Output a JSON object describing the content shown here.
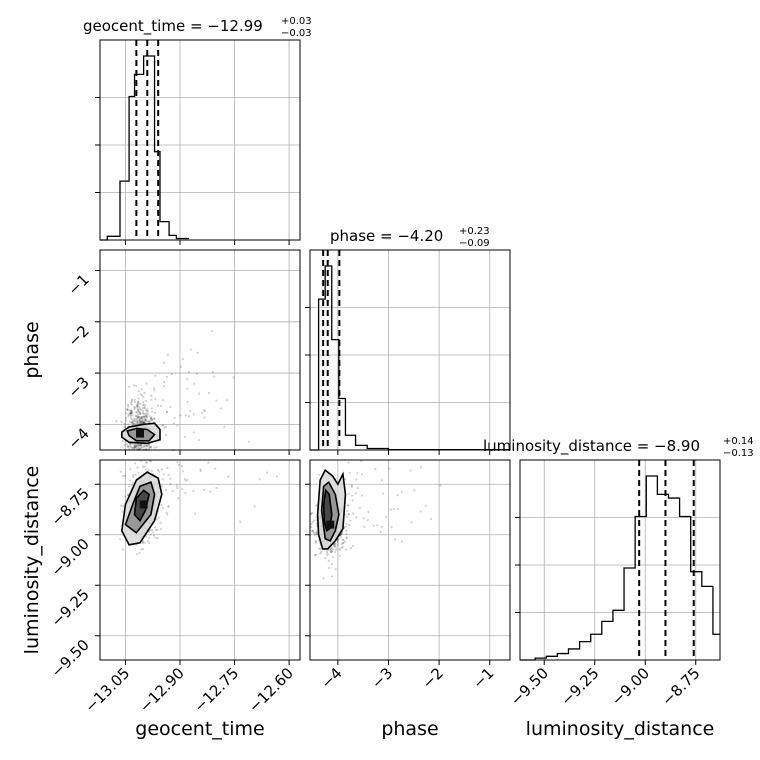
{
  "chart_data": {
    "type": "corner",
    "parameters": [
      "geocent_time",
      "phase",
      "luminosity_distance"
    ],
    "grid": true,
    "diagonal": [
      {
        "parameter": "geocent_time",
        "title": "geocent_time = −12.99",
        "title_plus": "+0.03",
        "title_minus": "−0.03",
        "median": -12.99,
        "quantiles": [
          -13.02,
          -12.99,
          -12.96
        ],
        "xlim": [
          -13.12,
          -12.57
        ],
        "bins": [
          {
            "x0": -13.12,
            "x1": -13.1,
            "h": 0.0
          },
          {
            "x0": -13.1,
            "x1": -13.065,
            "h": 0.02
          },
          {
            "x0": -13.065,
            "x1": -13.04,
            "h": 0.32
          },
          {
            "x0": -13.04,
            "x1": -13.025,
            "h": 0.78
          },
          {
            "x0": -13.025,
            "x1": -13.0,
            "h": 0.9
          },
          {
            "x0": -13.0,
            "x1": -12.97,
            "h": 1.0
          },
          {
            "x0": -12.97,
            "x1": -12.955,
            "h": 0.48
          },
          {
            "x0": -12.955,
            "x1": -12.93,
            "h": 0.1
          },
          {
            "x0": -12.93,
            "x1": -12.91,
            "h": 0.025
          },
          {
            "x0": -12.91,
            "x1": -12.875,
            "h": 0.008
          }
        ]
      },
      {
        "parameter": "phase",
        "title": "phase = −4.20",
        "title_plus": "+0.23",
        "title_minus": "−0.09",
        "median": -4.2,
        "quantiles": [
          -4.29,
          -4.2,
          -3.97
        ],
        "xlim": [
          -4.55,
          -0.6
        ],
        "bins": [
          {
            "x0": -4.55,
            "x1": -4.38,
            "h": 0.0
          },
          {
            "x0": -4.38,
            "x1": -4.25,
            "h": 0.82
          },
          {
            "x0": -4.25,
            "x1": -4.12,
            "h": 1.0
          },
          {
            "x0": -4.12,
            "x1": -3.98,
            "h": 0.6
          },
          {
            "x0": -3.98,
            "x1": -3.85,
            "h": 0.28
          },
          {
            "x0": -3.85,
            "x1": -3.65,
            "h": 0.08
          },
          {
            "x0": -3.65,
            "x1": -3.42,
            "h": 0.025
          },
          {
            "x0": -3.42,
            "x1": -3.0,
            "h": 0.008
          },
          {
            "x0": -3.0,
            "x1": -0.6,
            "h": 0.002
          }
        ]
      },
      {
        "parameter": "luminosity_distance",
        "title": "luminosity_distance = −8.90",
        "title_plus": "+0.14",
        "title_minus": "−0.13",
        "median": -8.9,
        "quantiles": [
          -9.03,
          -8.9,
          -8.76
        ],
        "xlim": [
          -9.62,
          -8.63
        ],
        "bins": [
          {
            "x0": -9.62,
            "x1": -9.545,
            "h": 0.0
          },
          {
            "x0": -9.545,
            "x1": -9.49,
            "h": 0.01
          },
          {
            "x0": -9.49,
            "x1": -9.435,
            "h": 0.02
          },
          {
            "x0": -9.435,
            "x1": -9.38,
            "h": 0.035
          },
          {
            "x0": -9.38,
            "x1": -9.325,
            "h": 0.06
          },
          {
            "x0": -9.325,
            "x1": -9.27,
            "h": 0.1
          },
          {
            "x0": -9.27,
            "x1": -9.215,
            "h": 0.14
          },
          {
            "x0": -9.215,
            "x1": -9.16,
            "h": 0.21
          },
          {
            "x0": -9.16,
            "x1": -9.105,
            "h": 0.27
          },
          {
            "x0": -9.105,
            "x1": -9.05,
            "h": 0.5
          },
          {
            "x0": -9.05,
            "x1": -8.995,
            "h": 0.78
          },
          {
            "x0": -8.995,
            "x1": -8.94,
            "h": 1.0
          },
          {
            "x0": -8.94,
            "x1": -8.885,
            "h": 0.9
          },
          {
            "x0": -8.885,
            "x1": -8.83,
            "h": 0.88
          },
          {
            "x0": -8.83,
            "x1": -8.775,
            "h": 0.78
          },
          {
            "x0": -8.775,
            "x1": -8.72,
            "h": 0.48
          },
          {
            "x0": -8.72,
            "x1": -8.665,
            "h": 0.4
          },
          {
            "x0": -8.665,
            "x1": -8.63,
            "h": 0.14
          }
        ]
      }
    ],
    "scatter_panels": [
      {
        "x_param": "geocent_time",
        "y_param": "phase",
        "xlim": [
          -13.12,
          -12.57
        ],
        "ylim": [
          -4.5,
          -0.6
        ],
        "density_peak": {
          "x": -13.01,
          "y": -4.18
        },
        "contours": [
          [
            [
              -13.06,
              -4.15
            ],
            [
              -13.04,
              -4.05
            ],
            [
              -13.0,
              -4.0
            ],
            [
              -12.97,
              -3.98
            ],
            [
              -12.955,
              -4.1
            ],
            [
              -12.955,
              -4.3
            ],
            [
              -12.99,
              -4.37
            ],
            [
              -13.04,
              -4.35
            ],
            [
              -13.06,
              -4.25
            ]
          ],
          [
            [
              -13.045,
              -4.13
            ],
            [
              -13.02,
              -4.08
            ],
            [
              -12.99,
              -4.1
            ],
            [
              -12.97,
              -4.2
            ],
            [
              -12.985,
              -4.32
            ],
            [
              -13.02,
              -4.32
            ],
            [
              -13.04,
              -4.22
            ]
          ]
        ]
      },
      {
        "x_param": "geocent_time",
        "y_param": "luminosity_distance",
        "xlim": [
          -13.12,
          -12.57
        ],
        "ylim": [
          -9.62,
          -8.63
        ],
        "density_peak": {
          "x": -13.0,
          "y": -8.85
        },
        "contours": [
          [
            [
              -13.06,
              -8.98
            ],
            [
              -13.05,
              -8.85
            ],
            [
              -13.02,
              -8.73
            ],
            [
              -12.99,
              -8.69
            ],
            [
              -12.96,
              -8.72
            ],
            [
              -12.95,
              -8.8
            ],
            [
              -12.97,
              -8.93
            ],
            [
              -13.01,
              -9.04
            ],
            [
              -13.04,
              -9.05
            ]
          ],
          [
            [
              -13.05,
              -8.95
            ],
            [
              -13.03,
              -8.85
            ],
            [
              -13.01,
              -8.76
            ],
            [
              -12.98,
              -8.74
            ],
            [
              -12.97,
              -8.8
            ],
            [
              -12.98,
              -8.9
            ],
            [
              -13.02,
              -8.99
            ]
          ],
          [
            [
              -13.025,
              -8.9
            ],
            [
              -13.02,
              -8.82
            ],
            [
              -13.0,
              -8.78
            ],
            [
              -12.985,
              -8.8
            ],
            [
              -12.995,
              -8.88
            ],
            [
              -13.01,
              -8.93
            ]
          ]
        ]
      },
      {
        "x_param": "phase",
        "y_param": "luminosity_distance",
        "xlim": [
          -4.55,
          -0.6
        ],
        "ylim": [
          -9.62,
          -8.63
        ],
        "density_peak": {
          "x": -4.15,
          "y": -8.95
        },
        "contours": [
          [
            [
              -4.4,
              -8.9
            ],
            [
              -4.35,
              -8.73
            ],
            [
              -4.25,
              -8.68
            ],
            [
              -4.1,
              -8.71
            ],
            [
              -4.0,
              -8.75
            ],
            [
              -3.9,
              -8.7
            ],
            [
              -3.85,
              -8.8
            ],
            [
              -3.9,
              -8.97
            ],
            [
              -4.05,
              -9.03
            ],
            [
              -4.2,
              -9.07
            ],
            [
              -4.3,
              -9.07
            ],
            [
              -4.38,
              -9.0
            ]
          ],
          [
            [
              -4.32,
              -8.88
            ],
            [
              -4.28,
              -8.76
            ],
            [
              -4.18,
              -8.74
            ],
            [
              -4.05,
              -8.8
            ],
            [
              -3.98,
              -8.9
            ],
            [
              -4.05,
              -8.98
            ],
            [
              -4.15,
              -9.03
            ],
            [
              -4.25,
              -9.02
            ]
          ],
          [
            [
              -4.28,
              -8.85
            ],
            [
              -4.24,
              -8.78
            ],
            [
              -4.17,
              -8.8
            ],
            [
              -4.12,
              -8.9
            ],
            [
              -4.16,
              -8.97
            ],
            [
              -4.22,
              -8.98
            ],
            [
              -4.27,
              -8.93
            ]
          ]
        ]
      }
    ],
    "ticks": {
      "geocent_time": {
        "values": [
          -13.05,
          -12.9,
          -12.75,
          -12.6
        ],
        "labels": [
          "−13.05",
          "−12.90",
          "−12.75",
          "−12.60"
        ]
      },
      "phase": {
        "values": [
          -4,
          -3,
          -2,
          -1
        ],
        "labels": [
          "−4",
          "−3",
          "−2",
          "−1"
        ]
      },
      "luminosity_distance": {
        "values": [
          -9.5,
          -9.25,
          -9.0,
          -8.75
        ],
        "labels": [
          "−9.50",
          "−9.25",
          "−9.00",
          "−8.75"
        ]
      }
    },
    "xlabels": [
      "geocent_time",
      "phase",
      "luminosity_distance"
    ],
    "ylabels": [
      "phase",
      "luminosity_distance"
    ]
  }
}
